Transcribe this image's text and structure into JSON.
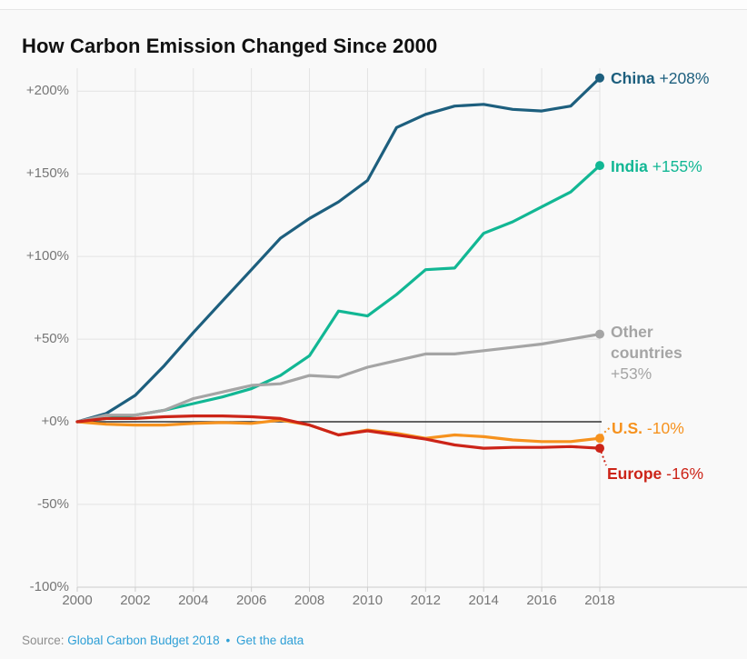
{
  "title": "How Carbon Emission Changed Since 2000",
  "footer": {
    "source_label": "Source:",
    "source_link": "Global Carbon Budget 2018",
    "separator": "•",
    "data_link": "Get the data"
  },
  "colors": {
    "background": "#f9f9f9",
    "grid": "#e3e3e3",
    "zero_line": "#333333",
    "axis_line": "#cccccc",
    "axis_text": "#767676",
    "china": "#1d5f7e",
    "india": "#12b794",
    "other": "#a5a5a5",
    "us": "#f6921e",
    "europe": "#cc2418",
    "link": "#2e9fd6"
  },
  "chart_data": {
    "type": "line",
    "title": "How Carbon Emission Changed Since 2000",
    "xlabel": "",
    "ylabel": "",
    "grid": true,
    "legend_position": "right-end-labels",
    "xlim": [
      2000,
      2018
    ],
    "ylim": [
      -100,
      215
    ],
    "x": [
      2000,
      2001,
      2002,
      2003,
      2004,
      2005,
      2006,
      2007,
      2008,
      2009,
      2010,
      2011,
      2012,
      2013,
      2014,
      2015,
      2016,
      2017,
      2018
    ],
    "x_tick_labels": [
      "2000",
      "2002",
      "2004",
      "2006",
      "2008",
      "2010",
      "2012",
      "2014",
      "2016",
      "2018"
    ],
    "x_tick_values": [
      2000,
      2002,
      2004,
      2006,
      2008,
      2010,
      2012,
      2014,
      2016,
      2018
    ],
    "y_tick_labels": [
      "+200%",
      "+150%",
      "+100%",
      "+50%",
      "+0%",
      "-50%",
      "-100%"
    ],
    "y_tick_values": [
      200,
      150,
      100,
      50,
      0,
      -50,
      -100
    ],
    "series": [
      {
        "name": "China",
        "end_label": "+208%",
        "color": "#1d5f7e",
        "values": [
          0,
          5,
          16,
          34,
          54,
          73,
          92,
          111,
          123,
          133,
          146,
          178,
          186,
          191,
          192,
          189,
          188,
          191,
          208
        ]
      },
      {
        "name": "India",
        "end_label": "+155%",
        "color": "#12b794",
        "values": [
          0,
          2,
          4,
          7,
          11,
          15,
          20,
          28,
          40,
          67,
          64,
          77,
          92,
          93,
          114,
          121,
          130,
          139,
          155
        ]
      },
      {
        "name": "Other countries",
        "end_label": "+53%",
        "color": "#a5a5a5",
        "values": [
          0,
          4,
          4,
          7,
          14,
          18,
          22,
          23,
          28,
          27,
          33,
          37,
          41,
          41,
          43,
          45,
          47,
          50,
          53
        ]
      },
      {
        "name": "U.S.",
        "end_label": "-10%",
        "color": "#f6921e",
        "values": [
          0,
          -1.5,
          -2,
          -2,
          -1,
          -0.5,
          -1,
          1,
          -2,
          -8,
          -5,
          -7,
          -10,
          -8,
          -9,
          -11,
          -12,
          -12,
          -10
        ]
      },
      {
        "name": "Europe",
        "end_label": "-16%",
        "color": "#cc2418",
        "values": [
          0,
          2,
          2,
          3,
          3.5,
          3.5,
          3,
          2,
          -2,
          -8,
          -5.5,
          -8,
          -10.5,
          -14,
          -16,
          -15.5,
          -15.5,
          -15,
          -16
        ]
      }
    ]
  }
}
